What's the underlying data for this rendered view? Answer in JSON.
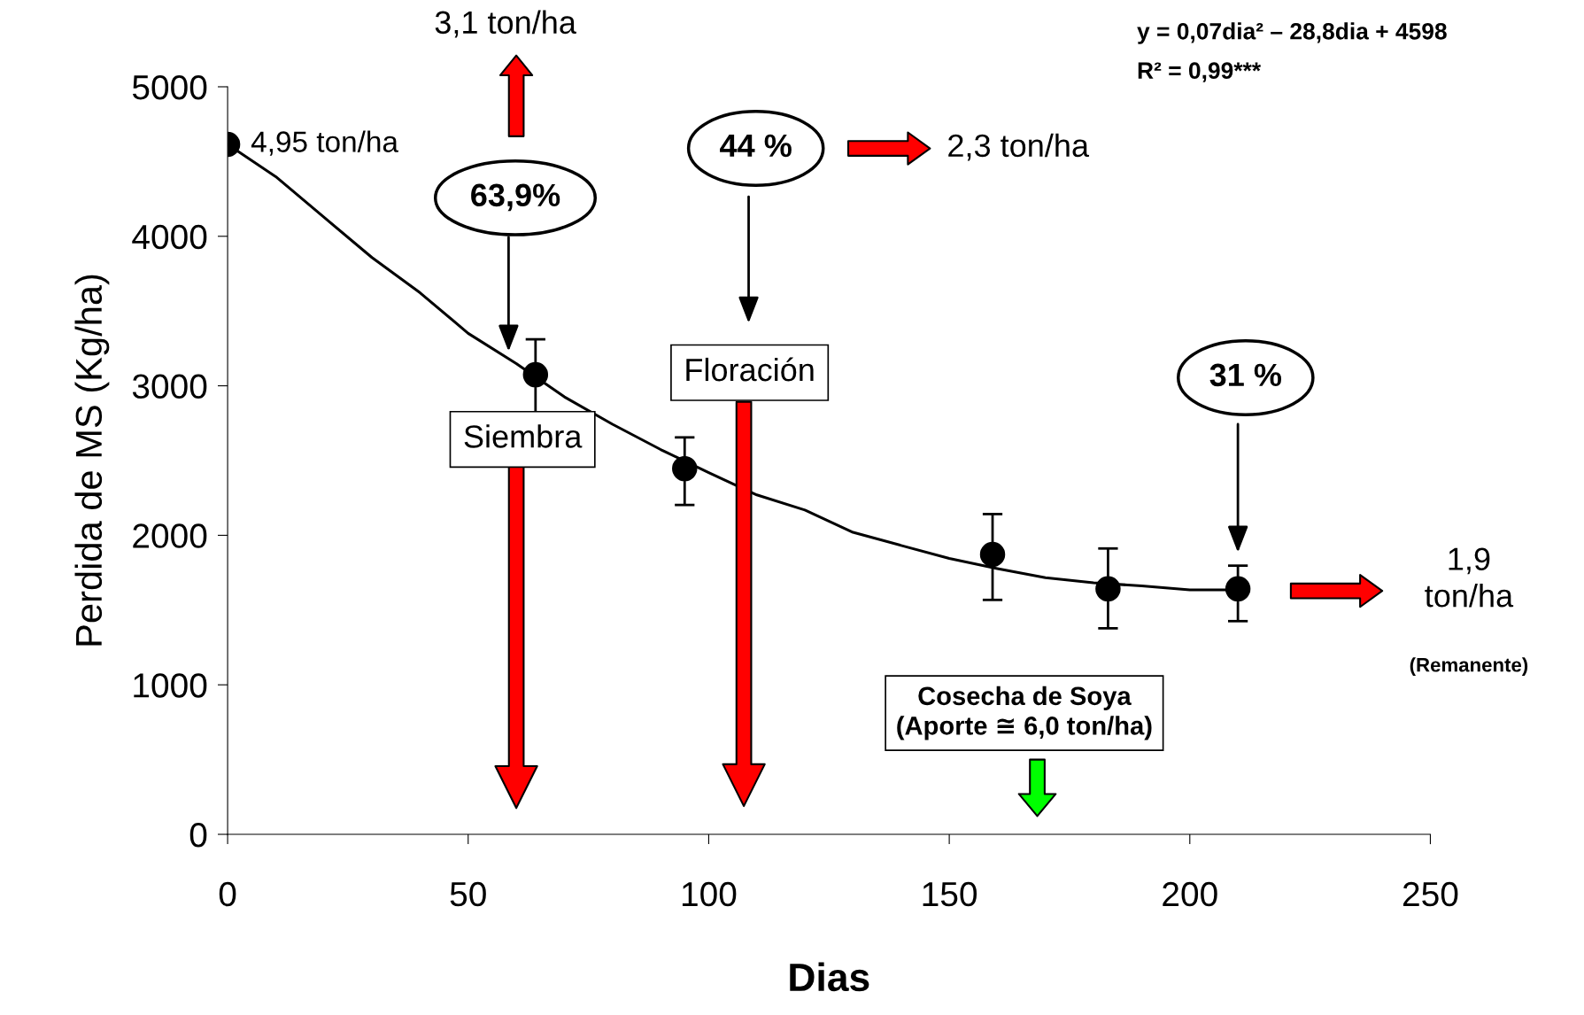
{
  "chart_data": {
    "type": "scatter",
    "xlabel": "Dias",
    "ylabel": "Perdida de MS (Kg/ha)",
    "xlim": [
      0,
      250
    ],
    "xticks": [
      0,
      50,
      100,
      150,
      200,
      250
    ],
    "ylim": [
      0,
      5000
    ],
    "yticks": [
      0,
      1000,
      2000,
      3000,
      4000,
      5000
    ],
    "grid": false,
    "legend": false,
    "series": [
      {
        "marker": "circle",
        "color": "#000000",
        "x": [
          0,
          64,
          95,
          159,
          183,
          210
        ],
        "values": [
          4615,
          3074,
          2446,
          1872,
          1642,
          1642
        ],
        "errors": [
          null,
          [
            2804,
            3311
          ],
          [
            2203,
            2655
          ],
          [
            1568,
            2142
          ],
          [
            1378,
            1912
          ],
          [
            1426,
            1797
          ]
        ]
      },
      {
        "type": "line",
        "color": "#000000",
        "line_style": "solid",
        "x": [
          0,
          10,
          20,
          30,
          40,
          50,
          60,
          70,
          80,
          90,
          100,
          110,
          120,
          130,
          140,
          150,
          160,
          170,
          180,
          190,
          200,
          210
        ],
        "values": [
          4615,
          4399,
          4128,
          3858,
          3622,
          3351,
          3149,
          2926,
          2743,
          2574,
          2419,
          2270,
          2169,
          2020,
          1932,
          1845,
          1777,
          1716,
          1682,
          1662,
          1635,
          1635
        ]
      }
    ],
    "annotations": [
      "3,1 ton/ha",
      "4,95 ton/ha",
      "63,9%",
      "44 %",
      "2,3 ton/ha",
      "Floración",
      "Siembra",
      "31 %",
      "1,9\nton/ha",
      "(Remanente)",
      "Cosecha de Soya\n(Aporte ≅ 6,0 ton/ha)",
      "y = 0,07dia² – 28,8dia + 4598",
      "R² = 0,99***"
    ]
  }
}
